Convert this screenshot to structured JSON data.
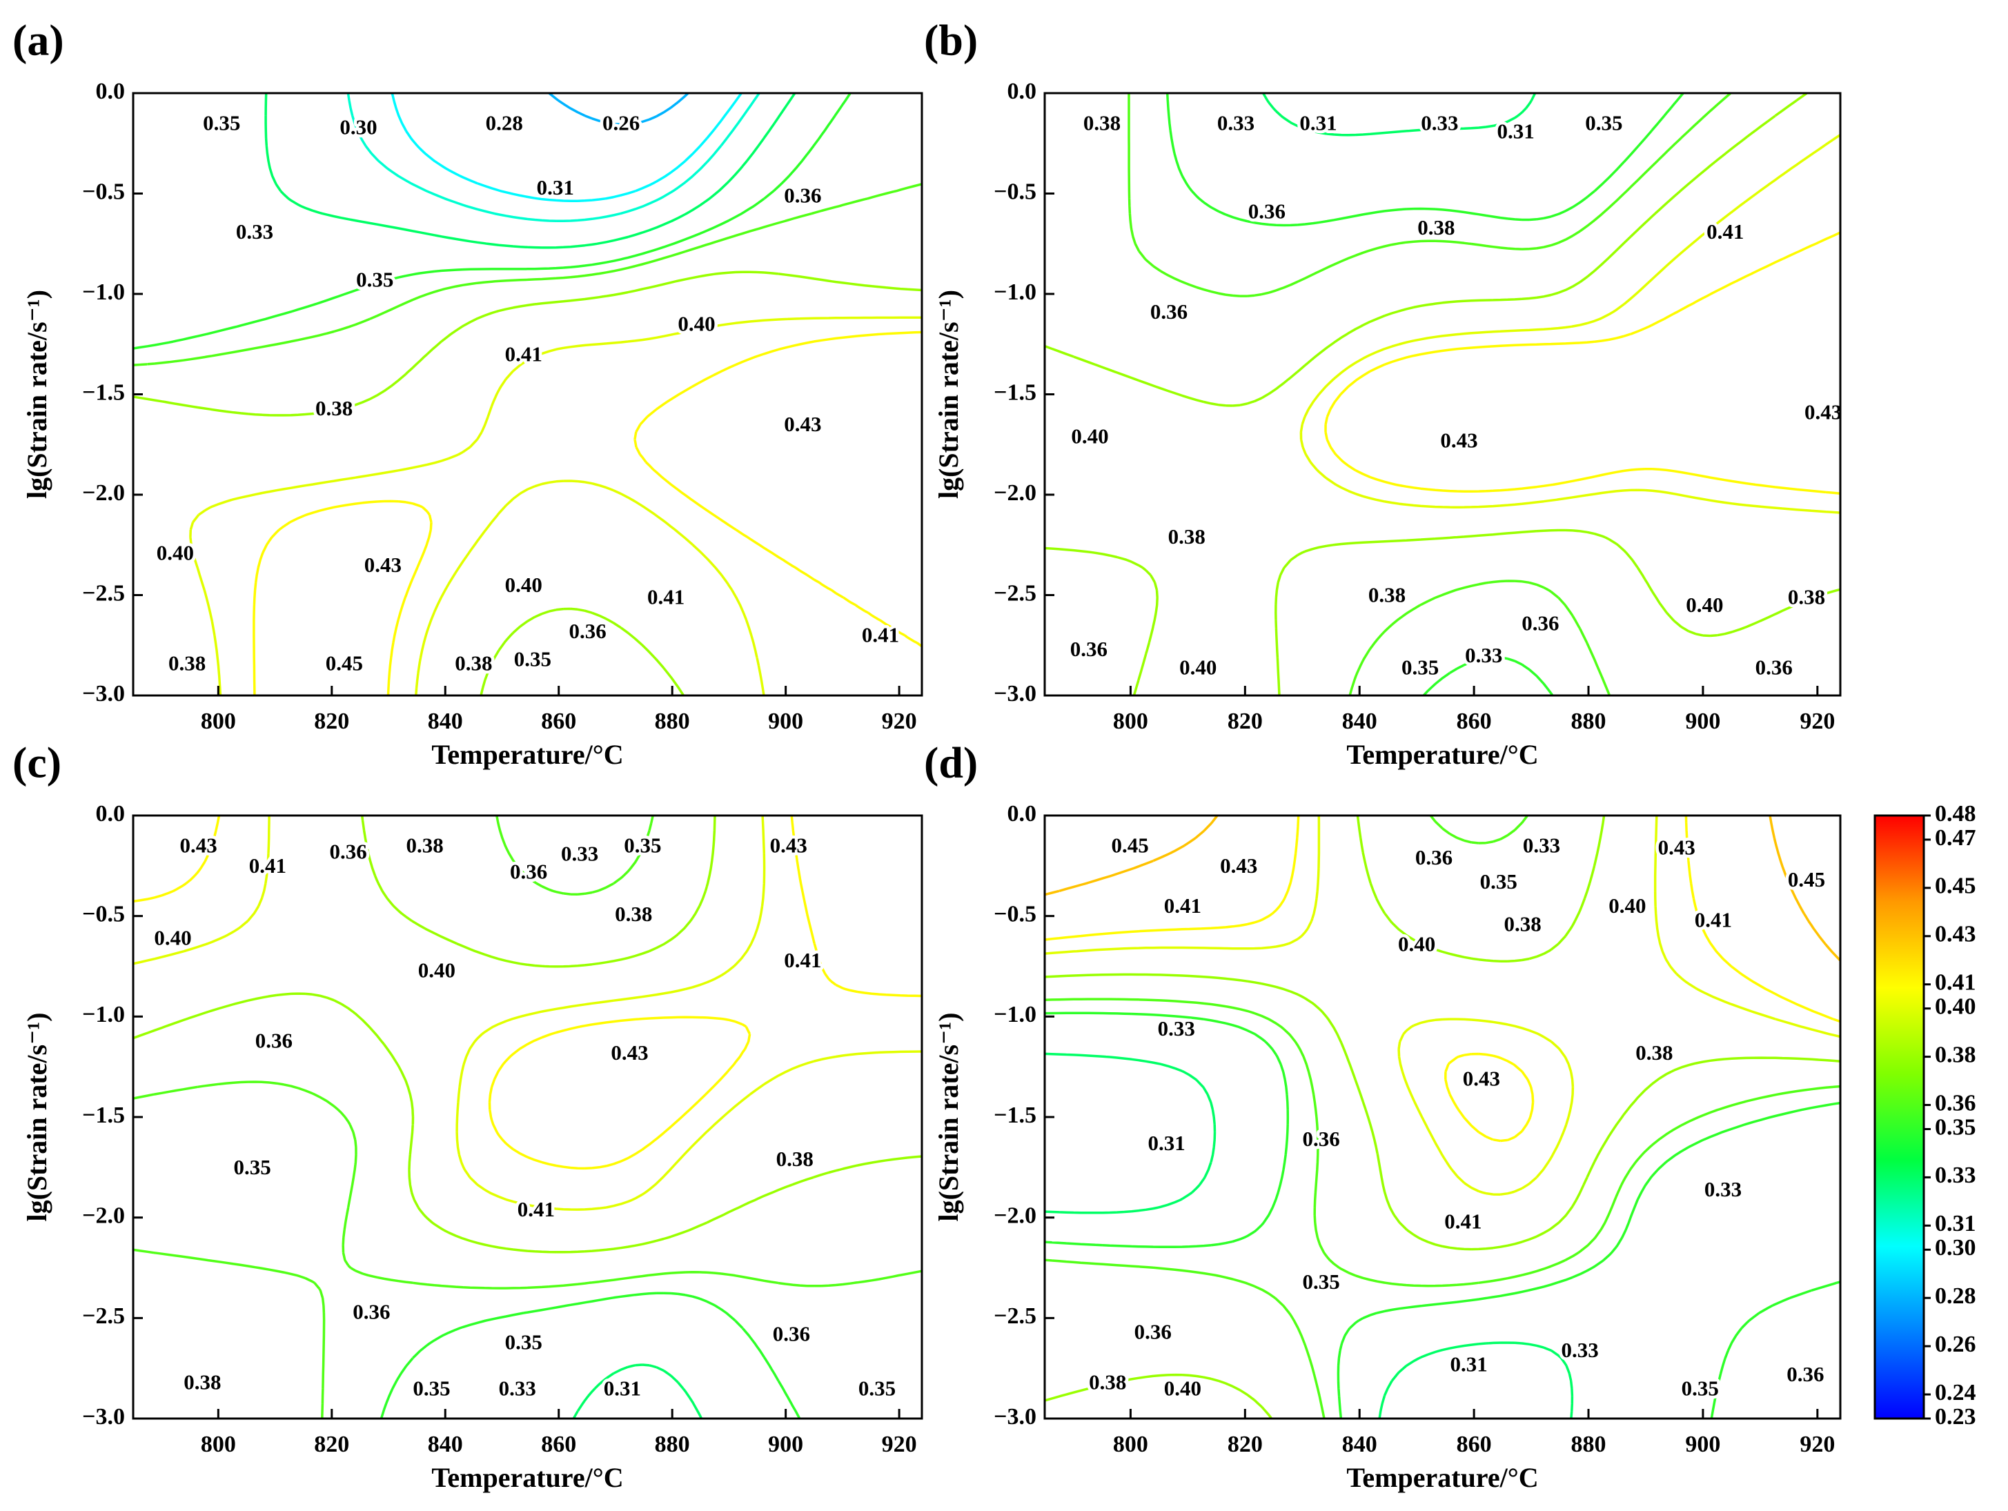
{
  "chart_data": [
    {
      "type": "contour",
      "panel_label": "(a)",
      "xlabel": "Temperature/°C",
      "ylabel": "lg(Strain rate/s⁻¹)",
      "xlim": [
        785,
        924
      ],
      "xticks": [
        800,
        820,
        840,
        860,
        880,
        900,
        920
      ],
      "ylim": [
        -3,
        0
      ],
      "yticks": [
        {
          "value": 0,
          "label": "0.0"
        },
        {
          "value": -0.5,
          "label": "−0.5"
        },
        {
          "value": -1,
          "label": "−1.0"
        },
        {
          "value": -1.5,
          "label": "−1.5"
        },
        {
          "value": -2,
          "label": "−2.0"
        },
        {
          "value": -2.5,
          "label": "−2.5"
        },
        {
          "value": -3,
          "label": "−3.0"
        }
      ],
      "contour_labels": [
        {
          "value": 0.35,
          "x": 800.6,
          "y": -0.16
        },
        {
          "value": 0.3,
          "label": "0.30",
          "x": 824.7,
          "y": -0.18
        },
        {
          "value": 0.28,
          "x": 850.4,
          "y": -0.16
        },
        {
          "value": 0.26,
          "x": 871,
          "y": -0.16
        },
        {
          "value": 0.31,
          "x": 859.4,
          "y": -0.48
        },
        {
          "value": 0.36,
          "x": 903,
          "y": -0.52
        },
        {
          "value": 0.33,
          "x": 806.4,
          "y": -0.7
        },
        {
          "value": 0.35,
          "x": 827.6,
          "y": -0.94
        },
        {
          "value": 0.4,
          "label": "0.40",
          "x": 884.3,
          "y": -1.16
        },
        {
          "value": 0.41,
          "x": 853.8,
          "y": -1.31
        },
        {
          "value": 0.38,
          "x": 820.4,
          "y": -1.58
        },
        {
          "value": 0.43,
          "x": 903,
          "y": -1.66
        },
        {
          "value": 0.4,
          "label": "0.40",
          "x": 792.4,
          "y": -2.3
        },
        {
          "value": 0.43,
          "x": 829,
          "y": -2.36
        },
        {
          "value": 0.4,
          "label": "0.40",
          "x": 853.8,
          "y": -2.46
        },
        {
          "value": 0.41,
          "x": 878.9,
          "y": -2.52
        },
        {
          "value": 0.36,
          "x": 865.1,
          "y": -2.69
        },
        {
          "value": 0.41,
          "x": 916.7,
          "y": -2.71
        },
        {
          "value": 0.38,
          "x": 794.5,
          "y": -2.85
        },
        {
          "value": 0.45,
          "x": 822.2,
          "y": -2.85
        },
        {
          "value": 0.38,
          "x": 845,
          "y": -2.85
        },
        {
          "value": 0.35,
          "x": 855.4,
          "y": -2.83
        }
      ]
    },
    {
      "type": "contour",
      "panel_label": "(b)",
      "xlabel": "Temperature/°C",
      "ylabel": "lg(Strain rate/s⁻¹)",
      "xlim": [
        785,
        924
      ],
      "xticks": [
        800,
        820,
        840,
        860,
        880,
        900,
        920
      ],
      "ylim": [
        -3,
        0
      ],
      "yticks": [
        {
          "value": 0,
          "label": "0.0"
        },
        {
          "value": -0.5,
          "label": "−0.5"
        },
        {
          "value": -1,
          "label": "−1.0"
        },
        {
          "value": -1.5,
          "label": "−1.5"
        },
        {
          "value": -2,
          "label": "−2.0"
        },
        {
          "value": -2.5,
          "label": "−2.5"
        },
        {
          "value": -3,
          "label": "−3.0"
        }
      ],
      "contour_labels": [
        {
          "value": 0.38,
          "x": 795,
          "y": -0.16
        },
        {
          "value": 0.33,
          "x": 818.4,
          "y": -0.16
        },
        {
          "value": 0.31,
          "x": 832.8,
          "y": -0.16
        },
        {
          "value": 0.33,
          "x": 854,
          "y": -0.16
        },
        {
          "value": 0.31,
          "x": 867.3,
          "y": -0.2
        },
        {
          "value": 0.35,
          "x": 882.7,
          "y": -0.16
        },
        {
          "value": 0.36,
          "x": 823.8,
          "y": -0.6
        },
        {
          "value": 0.38,
          "x": 853.4,
          "y": -0.68
        },
        {
          "value": 0.41,
          "x": 903.9,
          "y": -0.7
        },
        {
          "value": 0.36,
          "x": 806.7,
          "y": -1.1
        },
        {
          "value": 0.43,
          "x": 921,
          "y": -1.6
        },
        {
          "value": 0.4,
          "label": "0.40",
          "x": 792.9,
          "y": -1.72
        },
        {
          "value": 0.43,
          "x": 857.4,
          "y": -1.74
        },
        {
          "value": 0.38,
          "x": 809.8,
          "y": -2.22
        },
        {
          "value": 0.38,
          "x": 844.8,
          "y": -2.51
        },
        {
          "value": 0.4,
          "label": "0.40",
          "x": 900.3,
          "y": -2.56
        },
        {
          "value": 0.38,
          "x": 918.1,
          "y": -2.52
        },
        {
          "value": 0.36,
          "x": 871.6,
          "y": -2.65
        },
        {
          "value": 0.36,
          "x": 792.7,
          "y": -2.78
        },
        {
          "value": 0.4,
          "label": "0.40",
          "x": 811.8,
          "y": -2.87
        },
        {
          "value": 0.35,
          "x": 850.6,
          "y": -2.87
        },
        {
          "value": 0.33,
          "x": 861.7,
          "y": -2.81
        },
        {
          "value": 0.36,
          "x": 912.4,
          "y": -2.87
        }
      ]
    },
    {
      "type": "contour",
      "panel_label": "(c)",
      "xlabel": "Temperature/°C",
      "ylabel": "lg(Strain rate/s⁻¹)",
      "xlim": [
        785,
        924
      ],
      "xticks": [
        800,
        820,
        840,
        860,
        880,
        900,
        920
      ],
      "ylim": [
        -3,
        0
      ],
      "yticks": [
        {
          "value": 0,
          "label": "0.0"
        },
        {
          "value": -0.5,
          "label": "−0.5"
        },
        {
          "value": -1,
          "label": "−1.0"
        },
        {
          "value": -1.5,
          "label": "−1.5"
        },
        {
          "value": -2,
          "label": "−2.0"
        },
        {
          "value": -2.5,
          "label": "−2.5"
        },
        {
          "value": -3,
          "label": "−3.0"
        }
      ],
      "contour_labels": [
        {
          "value": 0.43,
          "x": 796.5,
          "y": -0.16
        },
        {
          "value": 0.41,
          "x": 808.7,
          "y": -0.26
        },
        {
          "value": 0.36,
          "x": 822.9,
          "y": -0.19
        },
        {
          "value": 0.38,
          "x": 836.4,
          "y": -0.16
        },
        {
          "value": 0.36,
          "x": 854.7,
          "y": -0.29
        },
        {
          "value": 0.33,
          "x": 863.7,
          "y": -0.2
        },
        {
          "value": 0.35,
          "x": 874.8,
          "y": -0.16
        },
        {
          "value": 0.43,
          "x": 900.5,
          "y": -0.16
        },
        {
          "value": 0.38,
          "x": 873.2,
          "y": -0.5
        },
        {
          "value": 0.4,
          "label": "0.40",
          "x": 792,
          "y": -0.62
        },
        {
          "value": 0.41,
          "x": 903,
          "y": -0.73
        },
        {
          "value": 0.4,
          "label": "0.40",
          "x": 838.5,
          "y": -0.78
        },
        {
          "value": 0.36,
          "x": 809.8,
          "y": -1.13
        },
        {
          "value": 0.43,
          "x": 872.5,
          "y": -1.19
        },
        {
          "value": 0.35,
          "x": 806,
          "y": -1.76
        },
        {
          "value": 0.38,
          "x": 901.6,
          "y": -1.72
        },
        {
          "value": 0.41,
          "x": 856,
          "y": -1.97
        },
        {
          "value": 0.36,
          "x": 827,
          "y": -2.48
        },
        {
          "value": 0.36,
          "x": 901,
          "y": -2.59
        },
        {
          "value": 0.35,
          "x": 853.8,
          "y": -2.63
        },
        {
          "value": 0.38,
          "x": 797.2,
          "y": -2.83
        },
        {
          "value": 0.35,
          "x": 837.6,
          "y": -2.86
        },
        {
          "value": 0.33,
          "x": 852.7,
          "y": -2.86
        },
        {
          "value": 0.31,
          "x": 871.2,
          "y": -2.86
        },
        {
          "value": 0.35,
          "x": 916.1,
          "y": -2.86
        }
      ]
    },
    {
      "type": "contour",
      "panel_label": "(d)",
      "xlabel": "Temperature/°C",
      "ylabel": "lg(Strain rate/s⁻¹)",
      "xlim": [
        785,
        924
      ],
      "xticks": [
        800,
        820,
        840,
        860,
        880,
        900,
        920
      ],
      "ylim": [
        -3,
        0
      ],
      "yticks": [
        {
          "value": 0,
          "label": "0.0"
        },
        {
          "value": -0.5,
          "label": "−0.5"
        },
        {
          "value": -1,
          "label": "−1.0"
        },
        {
          "value": -1.5,
          "label": "−1.5"
        },
        {
          "value": -2,
          "label": "−2.0"
        },
        {
          "value": -2.5,
          "label": "−2.5"
        },
        {
          "value": -3,
          "label": "−3.0"
        }
      ],
      "contour_labels": [
        {
          "value": 0.45,
          "x": 799.9,
          "y": -0.16
        },
        {
          "value": 0.43,
          "x": 818.9,
          "y": -0.26
        },
        {
          "value": 0.36,
          "x": 853,
          "y": -0.22
        },
        {
          "value": 0.33,
          "x": 871.8,
          "y": -0.16
        },
        {
          "value": 0.35,
          "x": 864.3,
          "y": -0.34
        },
        {
          "value": 0.43,
          "x": 895.4,
          "y": -0.17
        },
        {
          "value": 0.45,
          "x": 918.1,
          "y": -0.33
        },
        {
          "value": 0.41,
          "x": 809.1,
          "y": -0.46
        },
        {
          "value": 0.38,
          "x": 868.5,
          "y": -0.55
        },
        {
          "value": 0.4,
          "label": "0.40",
          "x": 886.8,
          "y": -0.46
        },
        {
          "value": 0.41,
          "x": 901.8,
          "y": -0.53
        },
        {
          "value": 0.4,
          "label": "0.40",
          "x": 850,
          "y": -0.65
        },
        {
          "value": 0.33,
          "x": 808,
          "y": -1.07
        },
        {
          "value": 0.38,
          "x": 891.5,
          "y": -1.19
        },
        {
          "value": 0.43,
          "x": 861.3,
          "y": -1.32
        },
        {
          "value": 0.36,
          "x": 833.3,
          "y": -1.62
        },
        {
          "value": 0.31,
          "x": 806.3,
          "y": -1.64
        },
        {
          "value": 0.33,
          "x": 903.5,
          "y": -1.87
        },
        {
          "value": 0.41,
          "x": 858.1,
          "y": -2.03
        },
        {
          "value": 0.35,
          "x": 833.3,
          "y": -2.33
        },
        {
          "value": 0.36,
          "x": 803.9,
          "y": -2.58
        },
        {
          "value": 0.33,
          "x": 878.5,
          "y": -2.67
        },
        {
          "value": 0.31,
          "x": 859.1,
          "y": -2.74
        },
        {
          "value": 0.38,
          "x": 796,
          "y": -2.83
        },
        {
          "value": 0.4,
          "label": "0.40",
          "x": 809.1,
          "y": -2.86
        },
        {
          "value": 0.35,
          "x": 899.5,
          "y": -2.86
        },
        {
          "value": 0.36,
          "x": 917.9,
          "y": -2.79
        }
      ],
      "colorbar": {
        "lim": [
          0.23,
          0.48
        ],
        "colors": [
          "#0000ff",
          "#0080ff",
          "#00ffff",
          "#00ff40",
          "#80ff00",
          "#ffff00",
          "#ff9900",
          "#ff0000"
        ],
        "ticks": [
          0.48,
          0.47,
          0.45,
          0.43,
          0.41,
          {
            "value": 0.4,
            "label": "0.40"
          },
          0.38,
          0.36,
          0.35,
          0.33,
          0.31,
          {
            "value": 0.3,
            "label": "0.30"
          },
          0.28,
          0.26,
          0.24,
          0.23
        ]
      }
    }
  ]
}
